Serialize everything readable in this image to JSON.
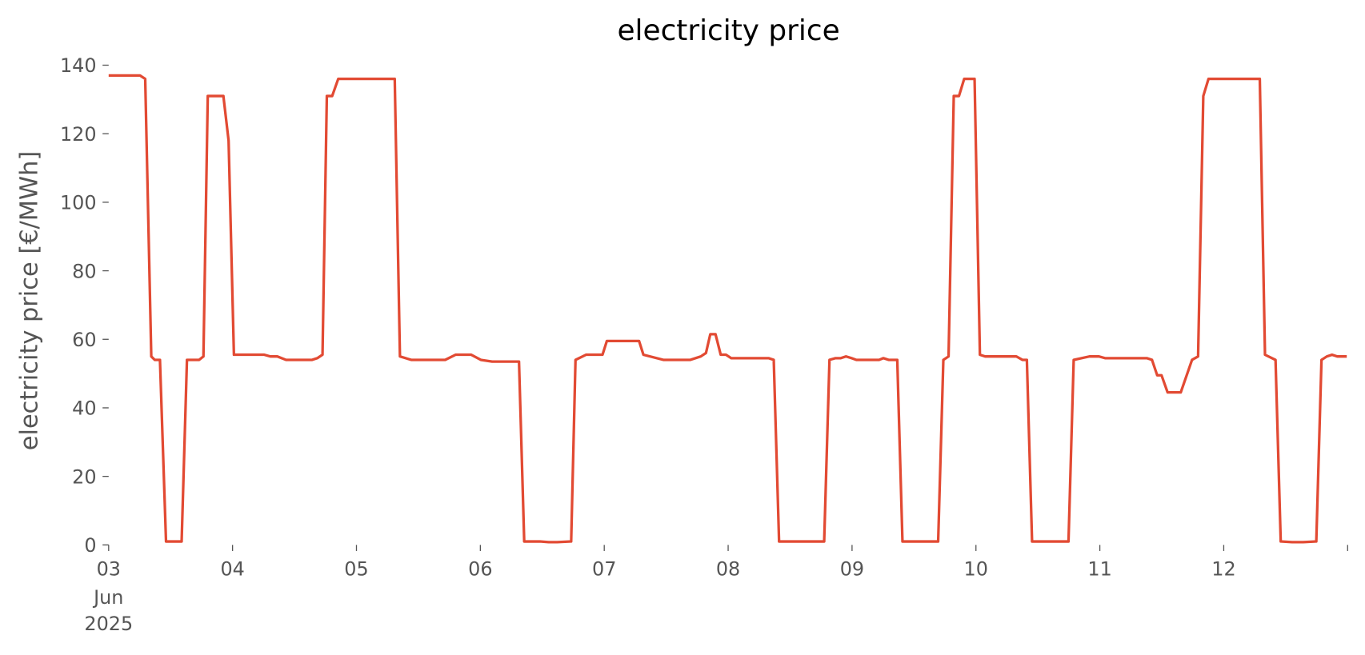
{
  "chart_data": {
    "type": "line",
    "title": "electricity price",
    "ylabel": "electricity price [€/MWh]",
    "x": [
      3.0,
      3.253,
      3.295,
      3.344,
      3.372,
      3.414,
      3.463,
      3.589,
      3.632,
      3.73,
      3.765,
      3.8,
      3.926,
      3.968,
      4.011,
      4.256,
      4.305,
      4.361,
      4.432,
      4.642,
      4.684,
      4.726,
      4.761,
      4.804,
      4.853,
      5.309,
      5.351,
      5.442,
      5.716,
      5.8,
      5.926,
      6.004,
      6.095,
      6.312,
      6.354,
      6.48,
      6.551,
      6.621,
      6.733,
      6.768,
      6.853,
      6.986,
      7.021,
      7.281,
      7.316,
      7.477,
      7.695,
      7.779,
      7.821,
      7.856,
      7.898,
      7.94,
      7.982,
      8.025,
      8.326,
      8.368,
      8.411,
      8.775,
      8.818,
      8.867,
      8.909,
      8.951,
      8.996,
      9.035,
      9.218,
      9.253,
      9.295,
      9.365,
      9.407,
      9.695,
      9.737,
      9.779,
      9.821,
      9.863,
      9.905,
      9.989,
      10.032,
      10.074,
      10.326,
      10.375,
      10.411,
      10.453,
      10.747,
      10.789,
      10.916,
      10.993,
      11.042,
      11.379,
      11.421,
      11.463,
      11.498,
      11.547,
      11.653,
      11.744,
      11.793,
      11.835,
      11.877,
      12.291,
      12.333,
      12.418,
      12.46,
      12.551,
      12.642,
      12.747,
      12.789,
      12.832,
      12.874,
      12.916,
      12.993
    ],
    "values": [
      137,
      137,
      136,
      55,
      54,
      54,
      1,
      1,
      54,
      54,
      55,
      131,
      131,
      118,
      55.5,
      55.5,
      55,
      55,
      54,
      54,
      54.5,
      55.5,
      131,
      131,
      136,
      136,
      55,
      54,
      54,
      55.5,
      55.5,
      54,
      53.5,
      53.5,
      1,
      1,
      0.8,
      0.8,
      1,
      54,
      55.5,
      55.5,
      59.5,
      59.5,
      55.5,
      54,
      54,
      55,
      56,
      61.5,
      61.5,
      55.5,
      55.5,
      54.5,
      54.5,
      54,
      1,
      1,
      54,
      54.5,
      54.5,
      55,
      54.5,
      54,
      54,
      54.5,
      54,
      54,
      1,
      1,
      54,
      55,
      131,
      131,
      136,
      136,
      55.5,
      55,
      55,
      54,
      54,
      1,
      1,
      54,
      55,
      55,
      54.5,
      54.5,
      54,
      49.5,
      49.5,
      44.5,
      44.5,
      54,
      55,
      131,
      136,
      136,
      55.5,
      54,
      1,
      0.8,
      0.8,
      1,
      54,
      55,
      55.5,
      55,
      55
    ],
    "color": "#e24a33",
    "xlim": [
      3,
      13
    ],
    "xticks": [
      {
        "value": 3,
        "label": "03"
      },
      {
        "value": 4,
        "label": "04"
      },
      {
        "value": 5,
        "label": "05"
      },
      {
        "value": 6,
        "label": "06"
      },
      {
        "value": 7,
        "label": "07"
      },
      {
        "value": 8,
        "label": "08"
      },
      {
        "value": 9,
        "label": "09"
      },
      {
        "value": 10,
        "label": "10"
      },
      {
        "value": 11,
        "label": "11"
      },
      {
        "value": 12,
        "label": "12"
      },
      {
        "value": 13,
        "label": null
      }
    ],
    "x_month": "Jun",
    "x_year": "2025",
    "ylim": [
      0,
      140
    ],
    "yticks": [
      0,
      20,
      40,
      60,
      80,
      100,
      120,
      140
    ],
    "grid": false
  }
}
